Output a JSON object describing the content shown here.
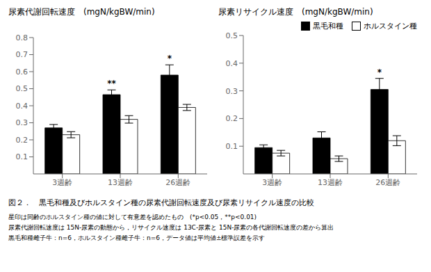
{
  "caption": "図２．　黒毛和種及びホルスタイン種の尿素代謝回転速度及び尿素リサイクル速度の比較",
  "notes": [
    "星印は同齢のホルスタイン種の値に対して有意差を認めたもの　(*p<0.05，**p<0.01)",
    "尿素代謝回転速度は 15N-尿素の動態から，リサイクル速度は 13C-尿素と 15N-尿素の各代謝回転速度の差から算出",
    "黒毛和種雌子牛：n=6，ホルスタイン種雌子牛：n=6，データ値は平均値±標準誤差を示す"
  ],
  "chart_data": [
    {
      "type": "bar",
      "title": "尿素代謝回転速度　(mgN/kgBW/min)",
      "categories": [
        "3週齢",
        "13週齢",
        "26週齢"
      ],
      "series": [
        {
          "name": "黒毛和種",
          "color": "#000000",
          "values": [
            0.27,
            0.465,
            0.58
          ],
          "errors": [
            0.02,
            0.028,
            0.06
          ]
        },
        {
          "name": "ホルスタイン種",
          "color": "#ffffff",
          "values": [
            0.23,
            0.32,
            0.39
          ],
          "errors": [
            0.018,
            0.022,
            0.018
          ]
        }
      ],
      "ylim": [
        0.0,
        0.8
      ],
      "yticks": [
        0.1,
        0.2,
        0.3,
        0.4,
        0.5,
        0.6,
        0.7,
        0.8
      ],
      "annotations": [
        {
          "category": "13週齢",
          "series": "黒毛和種",
          "text": "**"
        },
        {
          "category": "26週齢",
          "series": "黒毛和種",
          "text": "*"
        }
      ],
      "grid": false
    },
    {
      "type": "bar",
      "title": "尿素リサイクル速度　(mgN/kgBW/min)",
      "categories": [
        "3週齢",
        "13週齢",
        "26週齢"
      ],
      "series": [
        {
          "name": "黒毛和種",
          "color": "#000000",
          "values": [
            0.095,
            0.13,
            0.305
          ],
          "errors": [
            0.01,
            0.022,
            0.04
          ]
        },
        {
          "name": "ホルスタイン種",
          "color": "#ffffff",
          "values": [
            0.075,
            0.055,
            0.12
          ],
          "errors": [
            0.01,
            0.01,
            0.018
          ]
        }
      ],
      "ylim": [
        0.0,
        0.5
      ],
      "yticks": [
        0.1,
        0.2,
        0.3,
        0.4,
        0.5
      ],
      "annotations": [
        {
          "category": "26週齢",
          "series": "黒毛和種",
          "text": "*"
        }
      ],
      "grid": false,
      "legend": "upper right"
    }
  ]
}
